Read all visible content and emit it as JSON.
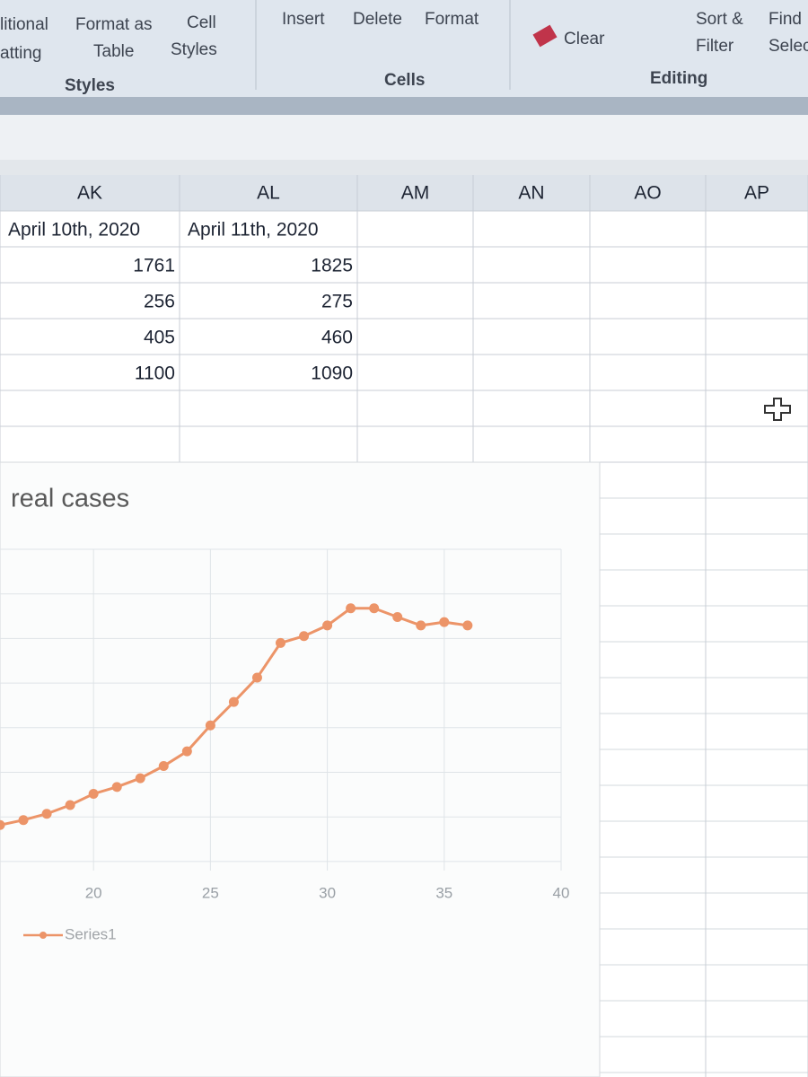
{
  "ribbon": {
    "styles_group": {
      "buttons": [
        [
          "litional",
          "atting"
        ],
        [
          "Format as",
          "Table"
        ],
        [
          "Cell",
          "Styles"
        ]
      ],
      "label": "Styles"
    },
    "cells_group": {
      "buttons": [
        "Insert",
        "Delete",
        "Format"
      ],
      "label": "Cells"
    },
    "editing_group": {
      "buttons": [
        "Clear",
        [
          "Sort &",
          "Filter"
        ],
        [
          "Find",
          "Selec"
        ]
      ],
      "label": "Editing"
    }
  },
  "table": {
    "headers": [
      "AK",
      "AL",
      "AM",
      "AN",
      "AO",
      "AP"
    ],
    "rows": [
      [
        "April 10th, 2020",
        "April 11th, 2020"
      ],
      [
        1761,
        1825
      ],
      [
        256,
        275
      ],
      [
        405,
        460
      ],
      [
        1100,
        1090
      ]
    ]
  },
  "chart_data": {
    "type": "line",
    "title": "real cases",
    "x": [
      16,
      17,
      18,
      19,
      20,
      21,
      22,
      23,
      24,
      25,
      26,
      27,
      28,
      29,
      30,
      31,
      32,
      33,
      34,
      35,
      36
    ],
    "series": [
      {
        "name": "Series1",
        "color": "#ec9468",
        "values": [
          11.7,
          13.3,
          15.3,
          18.1,
          21.7,
          23.9,
          26.7,
          30.6,
          35.3,
          43.6,
          51.1,
          58.9,
          70,
          72.2,
          75.6,
          81.1,
          81.1,
          78.3,
          75.6,
          76.7,
          75.6
        ]
      }
    ],
    "xlim": [
      16,
      40
    ],
    "xticks": [
      20,
      25,
      30,
      35,
      40
    ],
    "ylim": [
      0,
      100
    ],
    "grid": true
  }
}
